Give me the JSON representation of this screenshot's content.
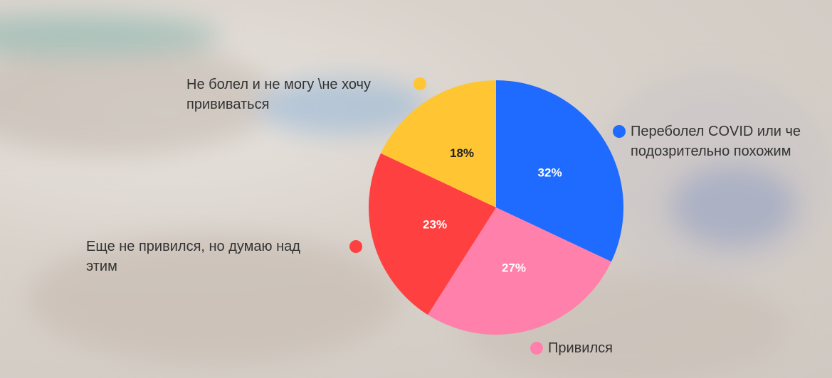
{
  "chart_data": {
    "type": "pie",
    "categories": [
      "Переболел COVID или че\nподозрительно похожим",
      "Привился",
      "Еще не привился, но думаю над\nэтим",
      "Не болел и не могу \\не хочу\nпрививаться"
    ],
    "values": [
      32,
      27,
      23,
      18
    ],
    "value_labels": [
      "32%",
      "27%",
      "23%",
      "18%"
    ],
    "colors": [
      "#1f6bff",
      "#ff80aa",
      "#ff4040",
      "#ffc533"
    ]
  }
}
